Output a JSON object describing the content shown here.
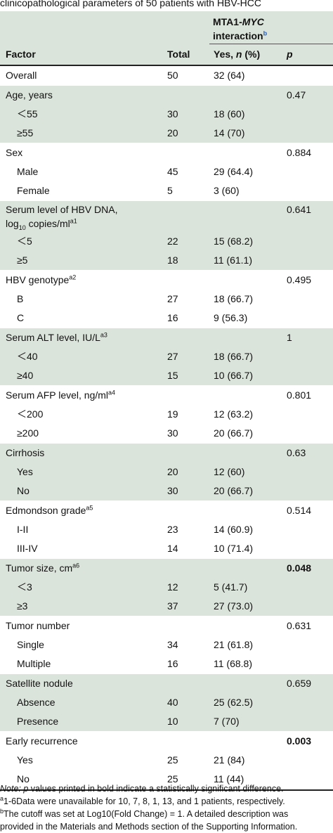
{
  "caption": "clinicopathological parameters of 50 patients with HBV-HCC",
  "header": {
    "mta_prefix": "MTA1-",
    "mta_gene": "MYC",
    "mta_line2": "interaction",
    "mta_sup": "b",
    "factor": "Factor",
    "total": "Total",
    "yes_prefix": "Yes, ",
    "yes_n": "n",
    "yes_suffix": " (%)",
    "p": "p"
  },
  "overall": {
    "label": "Overall",
    "total": "50",
    "yes": "32 (64)"
  },
  "groups": [
    {
      "label": "Age, years",
      "p": "0.47",
      "p_bold": false,
      "shaded": true,
      "rows": [
        {
          "label": "＜55",
          "total": "30",
          "yes": "18 (60)"
        },
        {
          "label": "≥55",
          "total": "20",
          "yes": "14 (70)"
        }
      ]
    },
    {
      "label": "Sex",
      "p": "0.884",
      "p_bold": false,
      "shaded": false,
      "rows": [
        {
          "label": "Male",
          "total": "45",
          "yes": "29 (64.4)"
        },
        {
          "label": "Female",
          "total": "5",
          "yes": "3 (60)"
        }
      ]
    },
    {
      "label": "Serum level of HBV DNA,",
      "label2": "log",
      "label2_sub": "10",
      "label2_rest": " copies/ml",
      "label2_sup": "a1",
      "p": "0.641",
      "p_bold": false,
      "shaded": true,
      "rows": [
        {
          "label": "＜5",
          "total": "22",
          "yes": "15 (68.2)"
        },
        {
          "label": "≥5",
          "total": "18",
          "yes": "11 (61.1)"
        }
      ]
    },
    {
      "label": "HBV genotype",
      "sup": "a2",
      "p": "0.495",
      "p_bold": false,
      "shaded": false,
      "rows": [
        {
          "label": "B",
          "total": "27",
          "yes": "18 (66.7)"
        },
        {
          "label": "C",
          "total": "16",
          "yes": "9 (56.3)"
        }
      ]
    },
    {
      "label": "Serum ALT level, IU/L",
      "sup": "a3",
      "p": "1",
      "p_bold": false,
      "shaded": true,
      "rows": [
        {
          "label": "＜40",
          "total": "27",
          "yes": "18 (66.7)"
        },
        {
          "label": "≥40",
          "total": "15",
          "yes": "10 (66.7)"
        }
      ]
    },
    {
      "label": "Serum AFP level, ng/ml",
      "sup": "a4",
      "p": "0.801",
      "p_bold": false,
      "shaded": false,
      "rows": [
        {
          "label": "＜200",
          "total": "19",
          "yes": "12 (63.2)"
        },
        {
          "label": "≥200",
          "total": "30",
          "yes": "20 (66.7)"
        }
      ]
    },
    {
      "label": "Cirrhosis",
      "p": "0.63",
      "p_bold": false,
      "shaded": true,
      "rows": [
        {
          "label": "Yes",
          "total": "20",
          "yes": "12 (60)"
        },
        {
          "label": "No",
          "total": "30",
          "yes": "20 (66.7)"
        }
      ]
    },
    {
      "label": "Edmondson grade",
      "sup": "a5",
      "p": "0.514",
      "p_bold": false,
      "shaded": false,
      "rows": [
        {
          "label": "I-II",
          "total": "23",
          "yes": "14 (60.9)"
        },
        {
          "label": "III-IV",
          "total": "14",
          "yes": "10 (71.4)"
        }
      ]
    },
    {
      "label": "Tumor size, cm",
      "sup": "a6",
      "p": "0.048",
      "p_bold": true,
      "shaded": true,
      "rows": [
        {
          "label": "＜3",
          "total": "12",
          "yes": "5 (41.7)"
        },
        {
          "label": "≥3",
          "total": "37",
          "yes": "27 (73.0)"
        }
      ]
    },
    {
      "label": "Tumor number",
      "p": "0.631",
      "p_bold": false,
      "shaded": false,
      "rows": [
        {
          "label": "Single",
          "total": "34",
          "yes": "21 (61.8)"
        },
        {
          "label": "Multiple",
          "total": "16",
          "yes": "11 (68.8)"
        }
      ]
    },
    {
      "label": "Satellite nodule",
      "p": "0.659",
      "p_bold": false,
      "shaded": true,
      "rows": [
        {
          "label": "Absence",
          "total": "40",
          "yes": "25 (62.5)"
        },
        {
          "label": "Presence",
          "total": "10",
          "yes": "7 (70)"
        }
      ]
    },
    {
      "label": "Early recurrence",
      "p": "0.003",
      "p_bold": true,
      "shaded": false,
      "rows": [
        {
          "label": "Yes",
          "total": "25",
          "yes": "21 (84)"
        },
        {
          "label": "No",
          "total": "25",
          "yes": "11 (44)"
        }
      ]
    }
  ],
  "notes": {
    "note_label": "Note:",
    "note_p": "p",
    "note_text": " values printed in bold indicate a statistically significant difference.",
    "a_sup": "a",
    "a_text": "1-6Data were unavailable for 10, 7, 8, 1, 13, and 1 patients, respectively.",
    "b_sup": "b",
    "b_text": "The cutoff was set at Log10(Fold Change) = 1. A detailed description was",
    "b_text2": "provided in the Materials and Methods section of the Supporting Information."
  },
  "colors": {
    "shade": "#dbe4db",
    "rule": "#222222"
  }
}
